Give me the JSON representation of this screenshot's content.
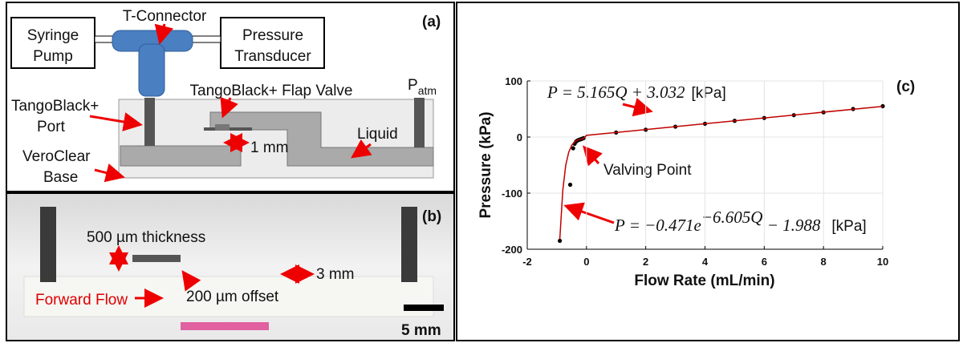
{
  "panel_a": {
    "panel_label": "(a)",
    "t_connector": "T-Connector",
    "syringe_pump": [
      "Syringe",
      "Pump"
    ],
    "pressure_transducer": [
      "Pressure",
      "Transducer"
    ],
    "flap_valve": "TangoBlack+ Flap Valve",
    "p_atm": {
      "symbol": "P",
      "subscript": "atm"
    },
    "port": [
      "TangoBlack+",
      "Port"
    ],
    "liquid": "Liquid",
    "gap": "1 mm",
    "base": [
      "VeroClear",
      "Base"
    ]
  },
  "panel_b": {
    "panel_label": "(b)",
    "thickness": "500 µm thickness",
    "offset": "200 µm offset",
    "spacing": "3 mm",
    "flow": "Forward Flow",
    "scale": "5 mm"
  },
  "chart_data": {
    "type": "scatter",
    "panel_label": "(c)",
    "xlabel": "Flow Rate (mL/min)",
    "ylabel": "Pressure (kPa)",
    "xlim": [
      -2,
      10
    ],
    "ylim": [
      -200,
      100
    ],
    "xticks": [
      -2,
      0,
      2,
      4,
      6,
      8,
      10
    ],
    "yticks": [
      -200,
      -100,
      0,
      100
    ],
    "grid": true,
    "series": [
      {
        "color": "#000000",
        "mode": "markers",
        "x": [
          -0.9,
          -0.55,
          -0.45,
          -0.4,
          -0.35,
          -0.3,
          -0.25,
          -0.2,
          -0.15,
          -0.1,
          1,
          2,
          3,
          4,
          5,
          6,
          7,
          8,
          9,
          10
        ],
        "values": [
          -185,
          -85,
          -20,
          -12,
          -8,
          -6,
          -5,
          -4,
          -3,
          -2,
          8,
          13,
          18.5,
          23.7,
          28.9,
          34,
          39,
          44,
          50,
          55
        ]
      },
      {
        "color": "#c00000",
        "mode": "line",
        "x": [
          -0.9,
          -0.8,
          -0.7,
          -0.6,
          -0.5,
          -0.4,
          -0.3,
          -0.2,
          -0.1,
          0,
          10
        ],
        "values": [
          -181.6,
          -94.9,
          -49.9,
          -26.8,
          -14.8,
          -8.6,
          -5.4,
          -3.8,
          -2.9,
          3.0,
          54.7
        ]
      }
    ],
    "annotations": {
      "valving_point": "Valving Point",
      "linear_fit": {
        "lhs": "P = 5.165Q + 3.032",
        "unit": "[kPa]"
      },
      "exp_fit": {
        "lhs": "P = −0.471e",
        "exponent": "−6.605Q",
        "rest": " − 1.988",
        "unit": "[kPa]"
      }
    }
  }
}
